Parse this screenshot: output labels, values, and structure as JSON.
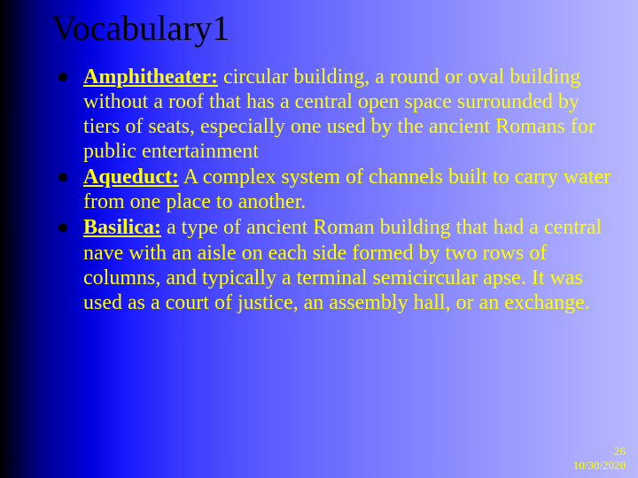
{
  "slide": {
    "title": "Vocabulary1",
    "items": [
      {
        "term": "Amphitheater:",
        "definition": " circular building, a round or oval building without a roof that has a central open space surrounded by tiers of seats, especially one used by the ancient Romans for public entertainment"
      },
      {
        "term": "Aqueduct:",
        "definition": " A complex system of channels built to carry water from one place to another."
      },
      {
        "term": "Basilica:",
        "definition": " a type of ancient Roman building that had a central nave with an aisle on each side formed by two rows of columns, and typically a terminal semicircular apse. It was used as a court of justice, an assembly hall, or an exchange."
      }
    ],
    "footer": {
      "page": "26",
      "date": "10/30/2020"
    }
  },
  "styling": {
    "background_gradient_start": "#000000",
    "background_gradient_end": "#b8b8ff",
    "title_color": "#000000",
    "text_color": "#FFFF00",
    "bullet_color": "#000000",
    "title_fontsize": 40,
    "body_fontsize": 24,
    "footer_fontsize": 13,
    "font_family": "Times New Roman"
  }
}
